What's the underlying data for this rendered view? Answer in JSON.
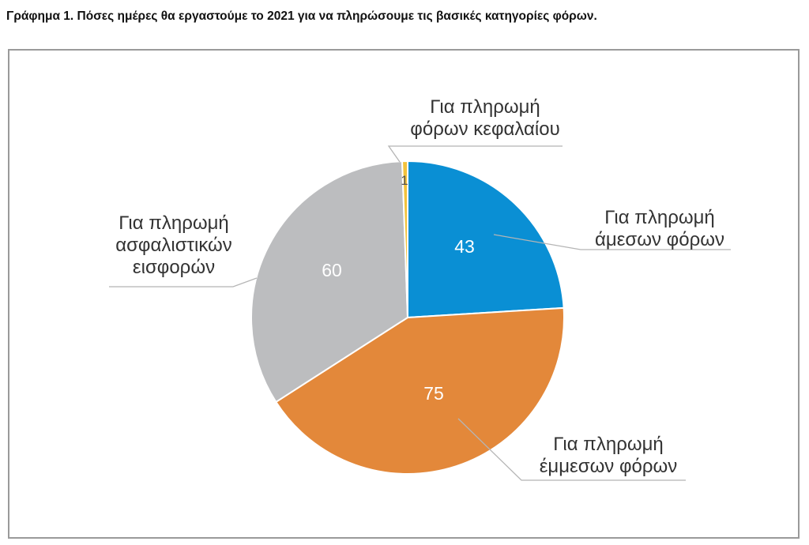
{
  "title": "Γράφημα 1. Πόσες ημέρες θα εργαστούμε το 2021 για να πληρώσουμε τις βασικές κατηγορίες φόρων.",
  "chart_data": {
    "type": "pie",
    "title": "Γράφημα 1. Πόσες ημέρες θα εργαστούμε το 2021 για να πληρώσουμε τις βασικές κατηγορίες φόρων.",
    "start_angle": "top, clockwise",
    "slices": [
      {
        "label": [
          "Για πληρωμή",
          "άμεσων φόρων"
        ],
        "value": 43,
        "color": "#0a8fd4"
      },
      {
        "label": [
          "Για πληρωμή",
          "έμμεσων φόρων"
        ],
        "value": 75,
        "color": "#e3883a"
      },
      {
        "label": [
          "Για πληρωμή",
          "ασφαλιστικών",
          "εισφορών"
        ],
        "value": 60,
        "color": "#bcbdbf"
      },
      {
        "label": [
          "Για πληρωμή",
          "φόρων κεφαλαίου"
        ],
        "value": 1,
        "color": "#f2c23c"
      }
    ]
  }
}
